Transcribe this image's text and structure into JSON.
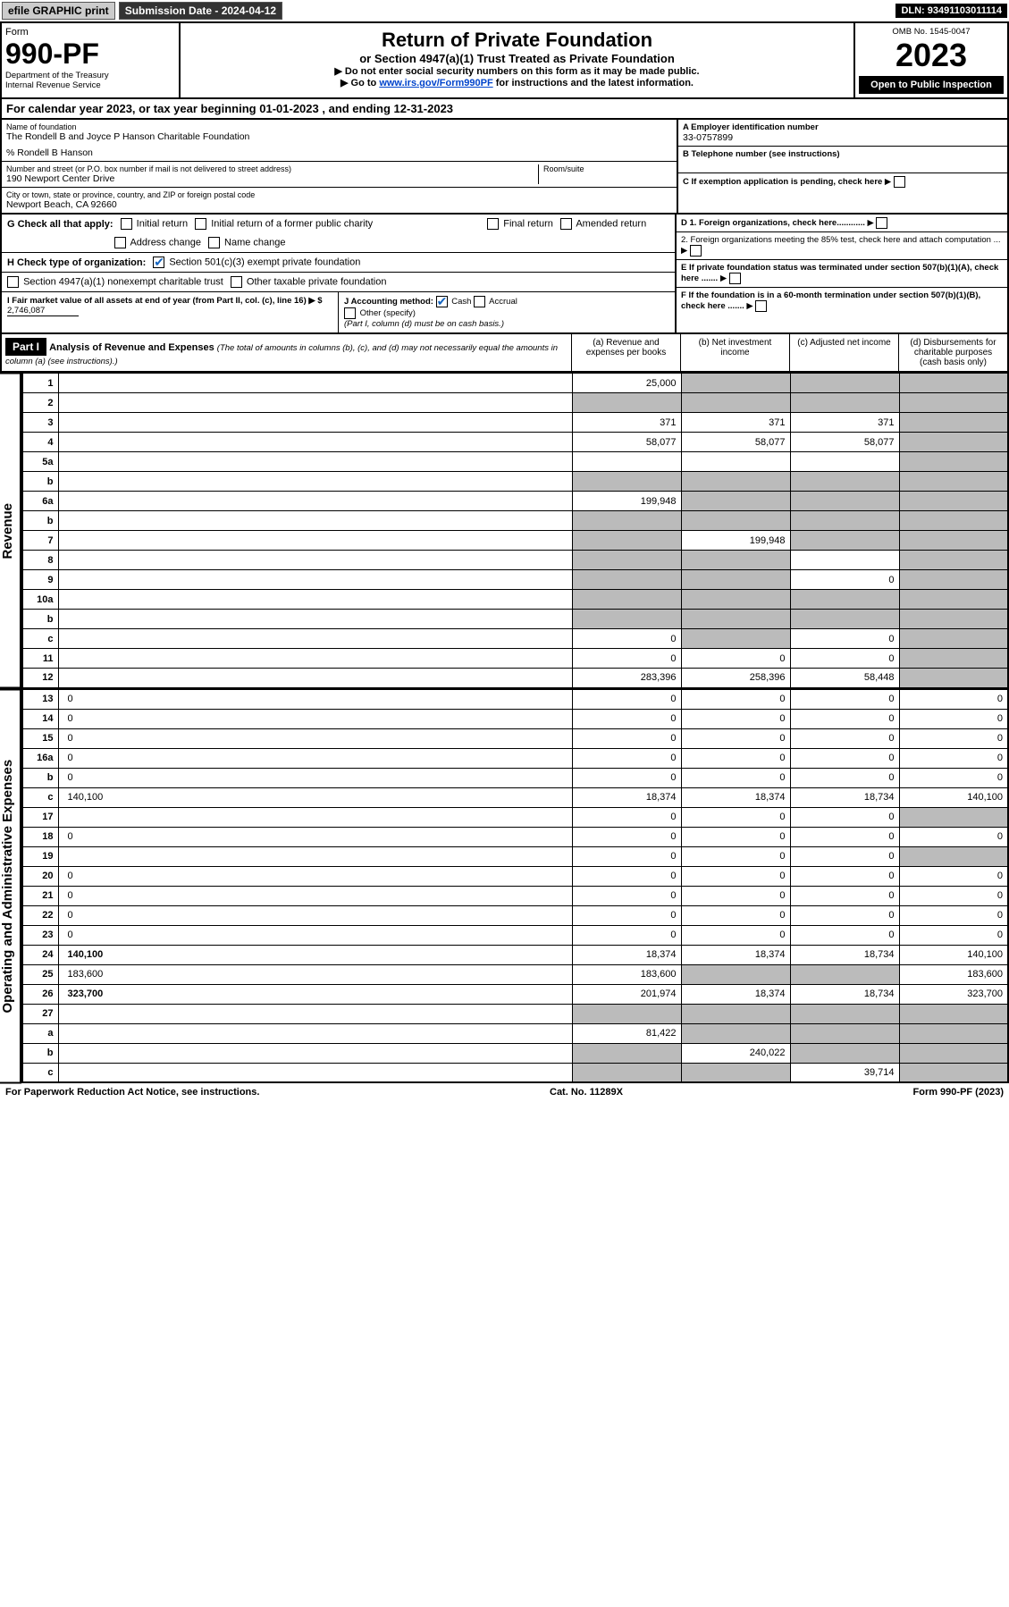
{
  "topbar": {
    "efile": "efile GRAPHIC print",
    "submission": "Submission Date - 2024-04-12",
    "dln": "DLN: 93491103011114"
  },
  "header": {
    "form_label": "Form",
    "form_no": "990-PF",
    "dept": "Department of the Treasury",
    "irs": "Internal Revenue Service",
    "title": "Return of Private Foundation",
    "subtitle": "or Section 4947(a)(1) Trust Treated as Private Foundation",
    "note1": "▶ Do not enter social security numbers on this form as it may be made public.",
    "note2_pre": "▶ Go to ",
    "note2_link": "www.irs.gov/Form990PF",
    "note2_post": " for instructions and the latest information.",
    "omb": "OMB No. 1545-0047",
    "year": "2023",
    "open": "Open to Public Inspection"
  },
  "calendar": {
    "text_pre": "For calendar year 2023, or tax year beginning ",
    "begin": "01-01-2023",
    "mid": " , and ending ",
    "end": "12-31-2023"
  },
  "foundation": {
    "name_lbl": "Name of foundation",
    "name": "The Rondell B and Joyce P Hanson Charitable Foundation",
    "care_of": "% Rondell B Hanson",
    "addr_lbl": "Number and street (or P.O. box number if mail is not delivered to street address)",
    "addr": "190 Newport Center Drive",
    "room_lbl": "Room/suite",
    "city_lbl": "City or town, state or province, country, and ZIP or foreign postal code",
    "city": "Newport Beach, CA  92660",
    "ein_lbl": "A Employer identification number",
    "ein": "33-0757899",
    "phone_lbl": "B Telephone number (see instructions)",
    "c_lbl": "C If exemption application is pending, check here",
    "d1_lbl": "D 1. Foreign organizations, check here............",
    "d2_lbl": "2. Foreign organizations meeting the 85% test, check here and attach computation ...",
    "e_lbl": "E If private foundation status was terminated under section 507(b)(1)(A), check here .......",
    "f_lbl": "F If the foundation is in a 60-month termination under section 507(b)(1)(B), check here .......",
    "g_lbl": "G Check all that apply:",
    "g_opts": [
      "Initial return",
      "Initial return of a former public charity",
      "Final return",
      "Amended return",
      "Address change",
      "Name change"
    ],
    "h_lbl": "H Check type of organization:",
    "h_opt1": "Section 501(c)(3) exempt private foundation",
    "h_opt2": "Section 4947(a)(1) nonexempt charitable trust",
    "h_opt3": "Other taxable private foundation",
    "i_lbl": "I Fair market value of all assets at end of year (from Part II, col. (c), line 16) ▶ $",
    "i_val": "2,746,087",
    "j_lbl": "J Accounting method:",
    "j_opts": [
      "Cash",
      "Accrual"
    ],
    "j_other": "Other (specify)",
    "j_note": "(Part I, column (d) must be on cash basis.)"
  },
  "part1": {
    "label": "Part I",
    "title": "Analysis of Revenue and Expenses",
    "title_note": "(The total of amounts in columns (b), (c), and (d) may not necessarily equal the amounts in column (a) (see instructions).)",
    "cols": [
      "(a) Revenue and expenses per books",
      "(b) Net investment income",
      "(c) Adjusted net income",
      "(d) Disbursements for charitable purposes (cash basis only)"
    ]
  },
  "revenue_label": "Revenue",
  "expenses_label": "Operating and Administrative Expenses",
  "rows": [
    {
      "n": "1",
      "d": "",
      "a": "25,000",
      "b": "",
      "c": "",
      "shade": [
        "b",
        "c",
        "d"
      ]
    },
    {
      "n": "2",
      "d": "",
      "a": "",
      "b": "",
      "c": "",
      "shade": [
        "a",
        "b",
        "c",
        "d"
      ]
    },
    {
      "n": "3",
      "d": "",
      "a": "371",
      "b": "371",
      "c": "371",
      "shade": [
        "d"
      ]
    },
    {
      "n": "4",
      "d": "",
      "a": "58,077",
      "b": "58,077",
      "c": "58,077",
      "shade": [
        "d"
      ]
    },
    {
      "n": "5a",
      "d": "",
      "a": "",
      "b": "",
      "c": "",
      "shade": [
        "d"
      ]
    },
    {
      "n": "b",
      "d": "",
      "a": "",
      "b": "",
      "c": "",
      "shade": [
        "a",
        "b",
        "c",
        "d"
      ],
      "inset": true
    },
    {
      "n": "6a",
      "d": "",
      "a": "199,948",
      "b": "",
      "c": "",
      "shade": [
        "b",
        "c",
        "d"
      ]
    },
    {
      "n": "b",
      "d": "",
      "a": "",
      "b": "",
      "c": "",
      "shade": [
        "a",
        "b",
        "c",
        "d"
      ],
      "inset": true
    },
    {
      "n": "7",
      "d": "",
      "a": "",
      "b": "199,948",
      "c": "",
      "shade": [
        "a",
        "c",
        "d"
      ]
    },
    {
      "n": "8",
      "d": "",
      "a": "",
      "b": "",
      "c": "",
      "shade": [
        "a",
        "b",
        "d"
      ]
    },
    {
      "n": "9",
      "d": "",
      "a": "",
      "b": "",
      "c": "0",
      "shade": [
        "a",
        "b",
        "d"
      ]
    },
    {
      "n": "10a",
      "d": "",
      "a": "",
      "b": "",
      "c": "",
      "shade": [
        "a",
        "b",
        "c",
        "d"
      ],
      "inset": true
    },
    {
      "n": "b",
      "d": "",
      "a": "",
      "b": "",
      "c": "",
      "shade": [
        "a",
        "b",
        "c",
        "d"
      ],
      "inset": true
    },
    {
      "n": "c",
      "d": "",
      "a": "0",
      "b": "",
      "c": "0",
      "shade": [
        "b",
        "d"
      ]
    },
    {
      "n": "11",
      "d": "",
      "a": "0",
      "b": "0",
      "c": "0",
      "shade": [
        "d"
      ]
    },
    {
      "n": "12",
      "d": "",
      "a": "283,396",
      "b": "258,396",
      "c": "58,448",
      "shade": [
        "d"
      ],
      "bold": true
    }
  ],
  "exp_rows": [
    {
      "n": "13",
      "d": "0",
      "a": "0",
      "b": "0",
      "c": "0"
    },
    {
      "n": "14",
      "d": "0",
      "a": "0",
      "b": "0",
      "c": "0"
    },
    {
      "n": "15",
      "d": "0",
      "a": "0",
      "b": "0",
      "c": "0"
    },
    {
      "n": "16a",
      "d": "0",
      "a": "0",
      "b": "0",
      "c": "0"
    },
    {
      "n": "b",
      "d": "0",
      "a": "0",
      "b": "0",
      "c": "0"
    },
    {
      "n": "c",
      "d": "140,100",
      "a": "18,374",
      "b": "18,374",
      "c": "18,734"
    },
    {
      "n": "17",
      "d": "",
      "a": "0",
      "b": "0",
      "c": "0",
      "shade": [
        "d"
      ]
    },
    {
      "n": "18",
      "d": "0",
      "a": "0",
      "b": "0",
      "c": "0"
    },
    {
      "n": "19",
      "d": "",
      "a": "0",
      "b": "0",
      "c": "0",
      "shade": [
        "d"
      ]
    },
    {
      "n": "20",
      "d": "0",
      "a": "0",
      "b": "0",
      "c": "0"
    },
    {
      "n": "21",
      "d": "0",
      "a": "0",
      "b": "0",
      "c": "0"
    },
    {
      "n": "22",
      "d": "0",
      "a": "0",
      "b": "0",
      "c": "0"
    },
    {
      "n": "23",
      "d": "0",
      "a": "0",
      "b": "0",
      "c": "0"
    },
    {
      "n": "24",
      "d": "140,100",
      "a": "18,374",
      "b": "18,374",
      "c": "18,734",
      "bold": true
    },
    {
      "n": "25",
      "d": "183,600",
      "a": "183,600",
      "b": "",
      "c": "",
      "shade": [
        "b",
        "c"
      ]
    },
    {
      "n": "26",
      "d": "323,700",
      "a": "201,974",
      "b": "18,374",
      "c": "18,734",
      "bold": true
    },
    {
      "n": "27",
      "d": "",
      "a": "",
      "b": "",
      "c": "",
      "shade": [
        "a",
        "b",
        "c",
        "d"
      ]
    },
    {
      "n": "a",
      "d": "",
      "a": "81,422",
      "b": "",
      "c": "",
      "shade": [
        "b",
        "c",
        "d"
      ],
      "bold": true
    },
    {
      "n": "b",
      "d": "",
      "a": "",
      "b": "240,022",
      "c": "",
      "shade": [
        "a",
        "c",
        "d"
      ],
      "bold": true
    },
    {
      "n": "c",
      "d": "",
      "a": "",
      "b": "",
      "c": "39,714",
      "shade": [
        "a",
        "b",
        "d"
      ],
      "bold": true
    }
  ],
  "footer": {
    "left": "For Paperwork Reduction Act Notice, see instructions.",
    "mid": "Cat. No. 11289X",
    "right": "Form 990-PF (2023)"
  }
}
